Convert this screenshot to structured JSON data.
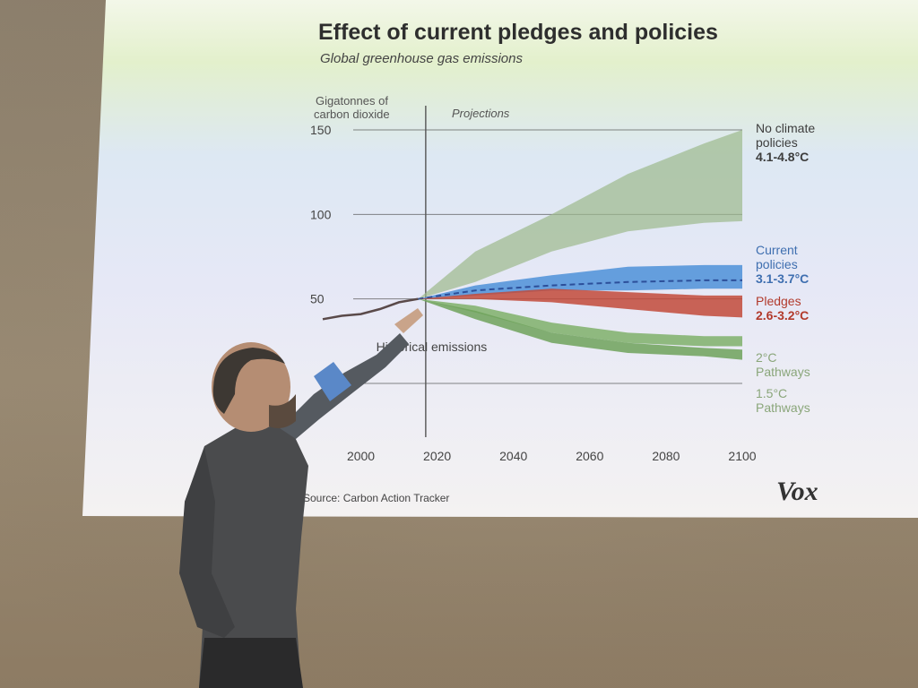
{
  "slide": {
    "title": "Effect of current pledges and policies",
    "subtitle": "Global greenhouse gas emissions",
    "source": "Source: Carbon Action Tracker",
    "brand": "Vox"
  },
  "chart_data": {
    "type": "area",
    "title": "Effect of current pledges and policies",
    "subtitle": "Global greenhouse gas emissions",
    "ylabel_lines": [
      "Gigatonnes of",
      "carbon dioxide"
    ],
    "annotation": "Projections",
    "history_label": "Historical emissions",
    "x_ticks": [
      2000,
      2020,
      2040,
      2060,
      2080,
      2100
    ],
    "y_ticks": [
      150,
      100,
      50
    ],
    "xlim": [
      1990,
      2100
    ],
    "ylim": [
      0,
      150
    ],
    "grid": true,
    "legend_placement": "right",
    "historical": {
      "x": [
        1990,
        1995,
        2000,
        2005,
        2010,
        2015
      ],
      "y": [
        38,
        40,
        41,
        44,
        48,
        50
      ]
    },
    "bands": [
      {
        "lines": [
          "No climate",
          "policies",
          "4.1-4.8°C"
        ],
        "color": "#9db98c",
        "x": [
          2015,
          2030,
          2050,
          2070,
          2090,
          2100
        ],
        "lower": [
          50,
          60,
          78,
          90,
          95,
          96
        ],
        "upper": [
          50,
          78,
          100,
          124,
          142,
          150
        ]
      },
      {
        "lines": [
          "Current",
          "policies",
          "3.1-3.7°C"
        ],
        "color": "#4e90d8",
        "x": [
          2015,
          2030,
          2050,
          2070,
          2090,
          2100
        ],
        "lower": [
          50,
          52,
          55,
          55,
          56,
          56
        ],
        "upper": [
          50,
          58,
          64,
          69,
          70,
          70
        ],
        "median": [
          50,
          55,
          58,
          60,
          61,
          61
        ]
      },
      {
        "lines": [
          "Pledges",
          "2.6-3.2°C"
        ],
        "color": "#c24a3a",
        "x": [
          2015,
          2030,
          2050,
          2070,
          2090,
          2100
        ],
        "lower": [
          50,
          50,
          48,
          44,
          40,
          39
        ],
        "upper": [
          50,
          53,
          56,
          54,
          52,
          52
        ]
      },
      {
        "lines": [
          "2°C",
          "Pathways"
        ],
        "color": "#7fb06a",
        "x": [
          2015,
          2030,
          2050,
          2070,
          2090,
          2100
        ],
        "lower": [
          50,
          42,
          30,
          24,
          22,
          22
        ],
        "upper": [
          50,
          46,
          36,
          30,
          28,
          28
        ]
      },
      {
        "lines": [
          "1.5°C",
          "Pathways"
        ],
        "color": "#6fa25a",
        "x": [
          2015,
          2030,
          2050,
          2070,
          2090,
          2100
        ],
        "lower": [
          50,
          38,
          24,
          18,
          16,
          14
        ],
        "upper": [
          50,
          43,
          30,
          24,
          21,
          20
        ]
      }
    ]
  }
}
